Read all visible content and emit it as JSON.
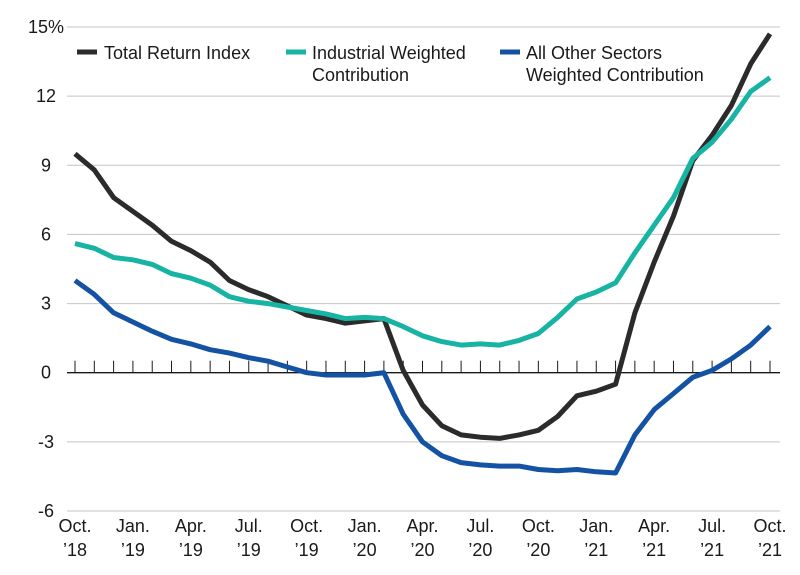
{
  "chart_data": {
    "type": "line",
    "title": "",
    "xlabel": "",
    "ylabel": "",
    "ylim": [
      -6,
      15
    ],
    "y_ticks": [
      {
        "value": 15,
        "label": "15%"
      },
      {
        "value": 12,
        "label": "12"
      },
      {
        "value": 9,
        "label": "9"
      },
      {
        "value": 6,
        "label": "6"
      },
      {
        "value": 3,
        "label": "3"
      },
      {
        "value": 0,
        "label": "0"
      },
      {
        "value": -3,
        "label": "-3"
      },
      {
        "value": -6,
        "label": "-6"
      }
    ],
    "x_tick_labels": [
      {
        "month": "Oct.",
        "year": "’18"
      },
      {
        "month": "Jan.",
        "year": "’19"
      },
      {
        "month": "Apr.",
        "year": "’19"
      },
      {
        "month": "Jul.",
        "year": "’19"
      },
      {
        "month": "Oct.",
        "year": "’19"
      },
      {
        "month": "Jan.",
        "year": "’20"
      },
      {
        "month": "Apr.",
        "year": "’20"
      },
      {
        "month": "Jul.",
        "year": "’20"
      },
      {
        "month": "Oct.",
        "year": "’20"
      },
      {
        "month": "Jan.",
        "year": "’21"
      },
      {
        "month": "Apr.",
        "year": "’21"
      },
      {
        "month": "Jul.",
        "year": "’21"
      },
      {
        "month": "Oct.",
        "year": "’21"
      }
    ],
    "x": [
      "2018-10",
      "2018-11",
      "2018-12",
      "2019-01",
      "2019-02",
      "2019-03",
      "2019-04",
      "2019-05",
      "2019-06",
      "2019-07",
      "2019-08",
      "2019-09",
      "2019-10",
      "2019-11",
      "2019-12",
      "2020-01",
      "2020-02",
      "2020-03",
      "2020-04",
      "2020-05",
      "2020-06",
      "2020-07",
      "2020-08",
      "2020-09",
      "2020-10",
      "2020-11",
      "2020-12",
      "2021-01",
      "2021-02",
      "2021-03",
      "2021-04",
      "2021-05",
      "2021-06",
      "2021-07",
      "2021-08",
      "2021-09",
      "2021-10"
    ],
    "grid": true,
    "legend": "top-left",
    "series": [
      {
        "name": "Total Return Index",
        "color": "#2b2b2b",
        "values": [
          9.5,
          8.8,
          7.6,
          7.0,
          6.4,
          5.7,
          5.3,
          4.8,
          4.0,
          3.6,
          3.3,
          2.9,
          2.5,
          2.35,
          2.15,
          2.25,
          2.35,
          0.1,
          -1.4,
          -2.3,
          -2.7,
          -2.8,
          -2.85,
          -2.7,
          -2.5,
          -1.9,
          -1.0,
          -0.8,
          -0.5,
          2.6,
          4.8,
          6.8,
          9.2,
          10.3,
          11.6,
          13.4,
          14.7
        ]
      },
      {
        "name": "Industrial Weighted Contribution",
        "color": "#17b3a3",
        "values": [
          5.6,
          5.4,
          5.0,
          4.9,
          4.7,
          4.3,
          4.1,
          3.8,
          3.3,
          3.1,
          3.0,
          2.85,
          2.7,
          2.55,
          2.35,
          2.4,
          2.35,
          2.0,
          1.6,
          1.35,
          1.2,
          1.25,
          1.2,
          1.4,
          1.7,
          2.4,
          3.2,
          3.5,
          3.9,
          5.2,
          6.4,
          7.6,
          9.3,
          10.0,
          11.0,
          12.2,
          12.8
        ]
      },
      {
        "name": "All Other Sectors Weighted Contribution",
        "color": "#1452a3",
        "values": [
          4.0,
          3.4,
          2.6,
          2.2,
          1.8,
          1.45,
          1.25,
          1.0,
          0.85,
          0.65,
          0.5,
          0.25,
          0.0,
          -0.1,
          -0.1,
          -0.1,
          0.0,
          -1.8,
          -3.0,
          -3.6,
          -3.9,
          -4.0,
          -4.05,
          -4.05,
          -4.2,
          -4.25,
          -4.2,
          -4.3,
          -4.35,
          -2.7,
          -1.6,
          -0.9,
          -0.2,
          0.1,
          0.6,
          1.2,
          2.0
        ]
      }
    ]
  },
  "legend": {
    "items": [
      {
        "lines": [
          "Total Return Index"
        ],
        "color": "#2b2b2b"
      },
      {
        "lines": [
          "Industrial Weighted",
          "Contribution"
        ],
        "color": "#17b3a3"
      },
      {
        "lines": [
          "All Other Sectors",
          "Weighted Contribution"
        ],
        "color": "#1452a3"
      }
    ]
  }
}
